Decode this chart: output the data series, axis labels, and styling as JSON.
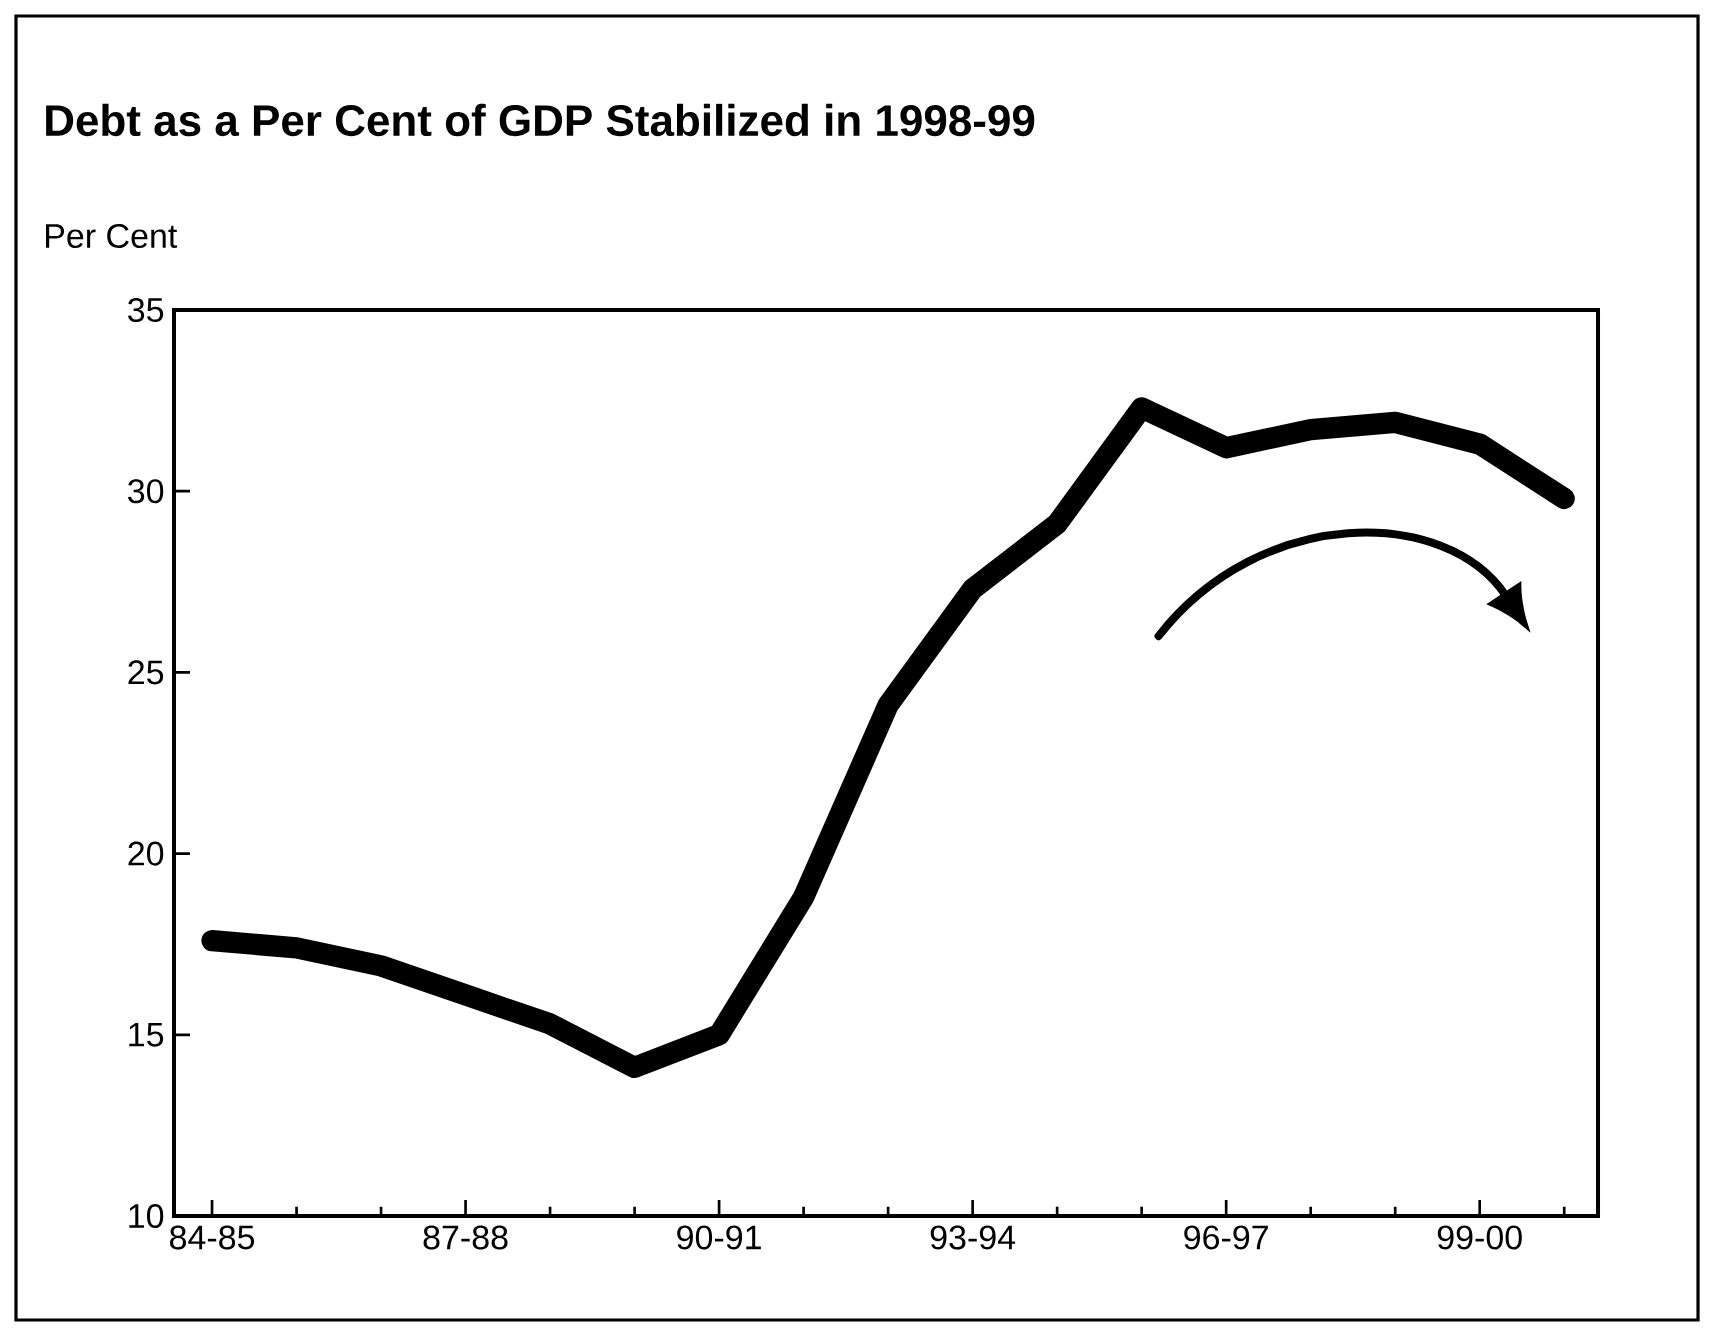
{
  "chart_data": {
    "type": "line",
    "title": "Debt as a Per Cent of GDP Stabilized in 1998-99",
    "ylabel": "Per Cent",
    "categories": [
      "84-85",
      null,
      null,
      "87-88",
      null,
      null,
      "90-91",
      null,
      null,
      "93-94",
      null,
      null,
      "96-97",
      null,
      null,
      "99-00",
      null
    ],
    "values": [
      17.6,
      17.4,
      16.9,
      16.1,
      15.3,
      14.1,
      15.0,
      18.8,
      24.1,
      27.3,
      29.1,
      32.3,
      31.2,
      31.7,
      31.9,
      31.3,
      29.8
    ],
    "color": "#000000",
    "ylim": [
      10,
      35
    ],
    "yticks": [
      10,
      15,
      20,
      25,
      30,
      35
    ]
  }
}
